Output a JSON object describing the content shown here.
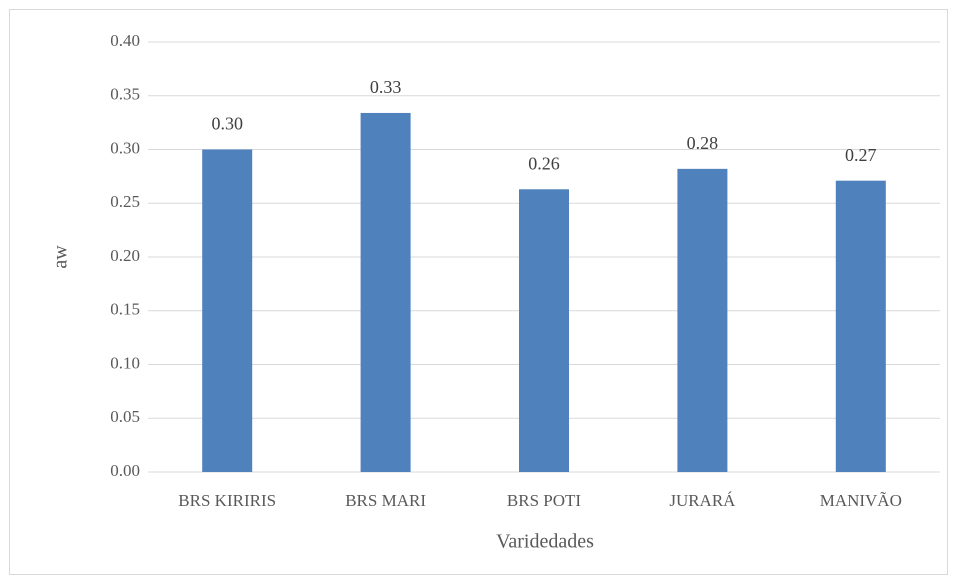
{
  "chart_data": {
    "type": "bar",
    "x_label": "Varidedades",
    "y_label": "aw",
    "categories": [
      "BRS KIRIRIS",
      "BRS MARI",
      "BRS POTI",
      "JURARÁ",
      "MANIVÃO"
    ],
    "values": [
      0.3,
      0.334,
      0.263,
      0.282,
      0.271
    ],
    "value_labels": [
      "0.30",
      "0.33",
      "0.26",
      "0.28",
      "0.27"
    ],
    "color": "#4f81bd",
    "ylim": [
      0,
      0.4
    ],
    "yticks": [
      {
        "value": 0,
        "label": "0.00"
      },
      {
        "value": 0.05,
        "label": "0.05"
      },
      {
        "value": 0.1,
        "label": "0.10"
      },
      {
        "value": 0.15,
        "label": "0.15"
      },
      {
        "value": 0.2,
        "label": "0.20"
      },
      {
        "value": 0.25,
        "label": "0.25"
      },
      {
        "value": 0.3,
        "label": "0.30"
      },
      {
        "value": 0.35,
        "label": "0.35"
      },
      {
        "value": 0.4,
        "label": "0.40"
      }
    ],
    "grid": true
  }
}
